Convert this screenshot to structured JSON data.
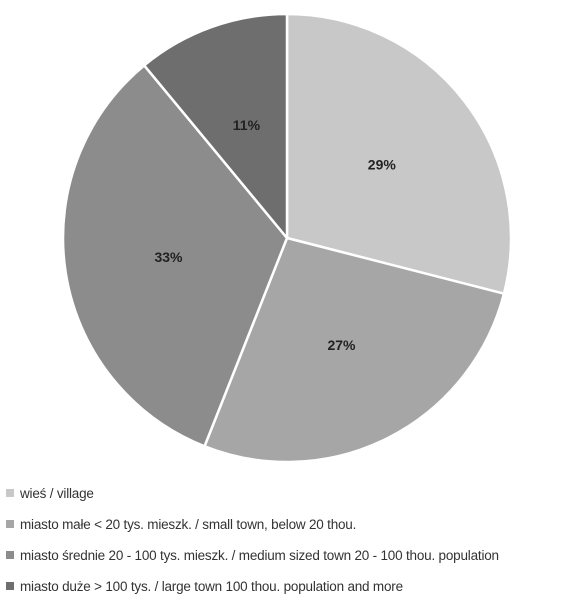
{
  "chart_data": {
    "type": "pie",
    "categories": [
      "wieś / village",
      "miasto małe < 20 tys. mieszk. / small town, below 20 thou.",
      "miasto średnie 20 - 100 tys. mieszk. / medium sized town 20 - 100 thou. population",
      "miasto duże > 100 tys. / large town 100 thou. population and more"
    ],
    "values": [
      29,
      27,
      33,
      11
    ],
    "value_labels": [
      "29%",
      "27%",
      "33%",
      "11%"
    ],
    "colors": [
      "#c8c8c8",
      "#a6a6a6",
      "#8c8c8c",
      "#6e6e6e"
    ],
    "legend_position": "bottom",
    "title": "",
    "grid": false
  }
}
